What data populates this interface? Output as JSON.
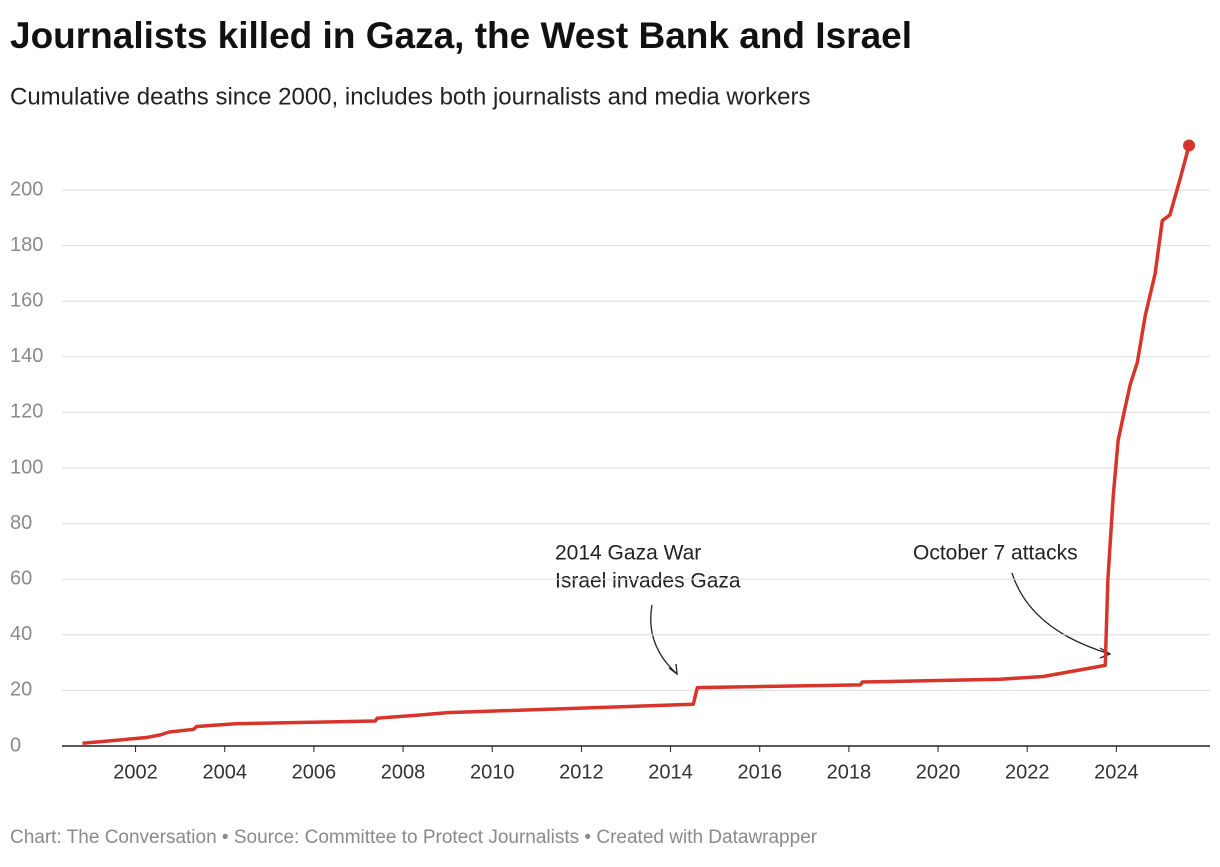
{
  "chart_data": {
    "type": "line",
    "title": "Journalists killed in Gaza, the West Bank and Israel",
    "subtitle": "Cumulative deaths since 2000, includes both journalists and media workers",
    "x": [
      2000.81,
      2002.22,
      2002.56,
      2002.74,
      2003.3,
      2003.37,
      2004.24,
      2007.38,
      2007.42,
      2008.28,
      2009.0,
      2014.51,
      2014.6,
      2018.26,
      2018.3,
      2021.39,
      2022.36,
      2023.75,
      2023.81,
      2023.93,
      2024.04,
      2024.2,
      2024.31,
      2024.47,
      2024.65,
      2024.87,
      2025.03,
      2025.2,
      2025.43,
      2025.63
    ],
    "series": [
      {
        "name": "Journalists killed",
        "color": "#d7352b",
        "values": [
          1,
          3,
          4,
          5,
          6,
          7,
          8,
          9,
          10,
          11,
          12,
          15,
          21,
          22,
          23,
          24,
          25,
          29,
          60,
          90,
          110,
          122,
          130,
          138,
          155,
          170,
          189,
          191,
          204,
          216
        ]
      }
    ],
    "xlim": [
      2000.35,
      2026.1
    ],
    "xticks": [
      2002,
      2004,
      2006,
      2008,
      2010,
      2012,
      2014,
      2016,
      2018,
      2020,
      2022,
      2024
    ],
    "ylim": [
      0,
      220
    ],
    "yticks": [
      0,
      20,
      40,
      60,
      80,
      100,
      120,
      140,
      160,
      180,
      200
    ],
    "grid": true,
    "annotations": [
      {
        "lines": [
          "2014 Gaza War",
          "Israel invades Gaza"
        ]
      },
      {
        "lines": [
          "October 7 attacks"
        ]
      }
    ],
    "footer": "Chart: The Conversation • Source: Committee to Protect Journalists • Created with Datawrapper"
  }
}
